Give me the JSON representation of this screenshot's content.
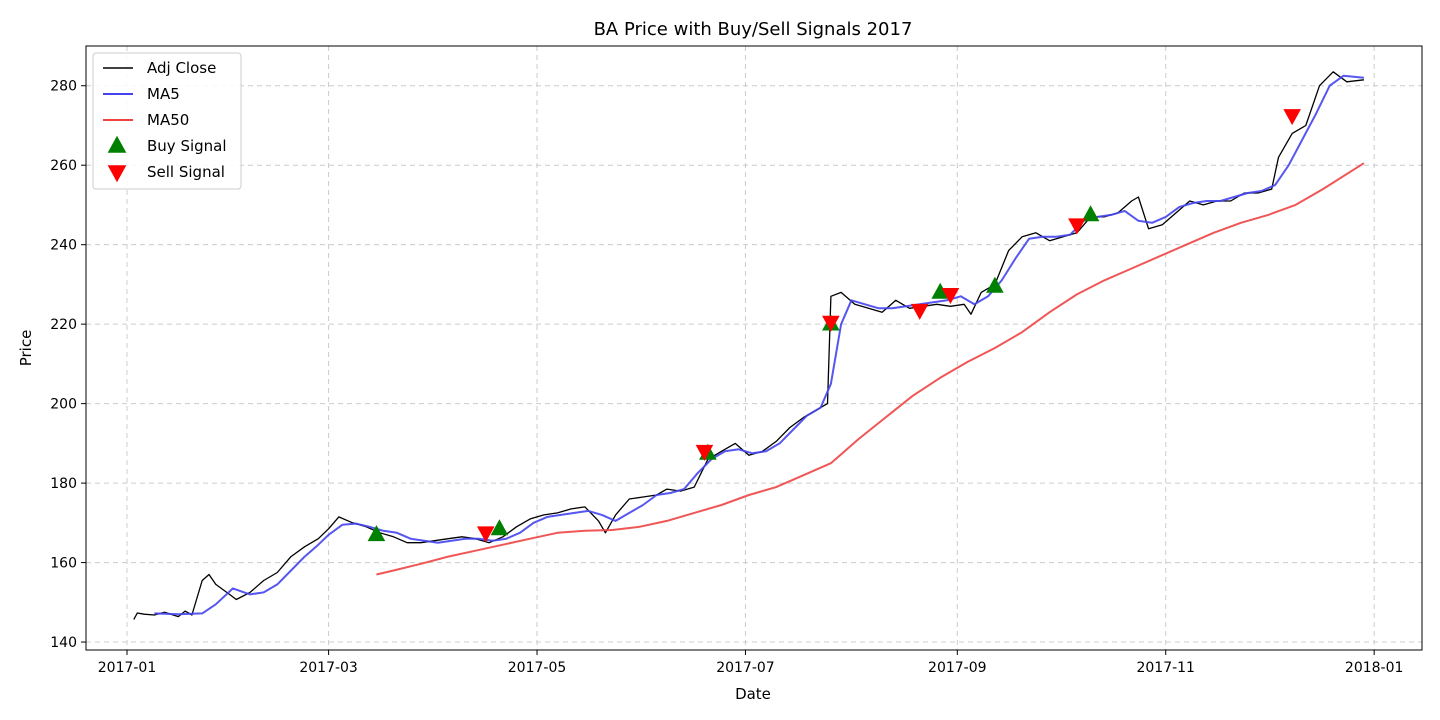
{
  "chart_data": {
    "type": "line",
    "title": "BA Price with Buy/Sell Signals 2017",
    "xlabel": "Date",
    "ylabel": "Price",
    "xlim": [
      "2016-12-20",
      "2018-01-15"
    ],
    "ylim": [
      138,
      290
    ],
    "x_ticks": [
      "2017-01-01",
      "2017-03-01",
      "2017-05-01",
      "2017-07-01",
      "2017-09-01",
      "2017-11-01",
      "2018-01-01"
    ],
    "x_tick_labels": [
      "2017-01",
      "2017-03",
      "2017-05",
      "2017-07",
      "2017-09",
      "2017-11",
      "2018-01"
    ],
    "y_ticks": [
      140,
      160,
      180,
      200,
      220,
      240,
      260,
      280
    ],
    "grid": true,
    "legend_position": "top-left",
    "colors": {
      "adj_close": "#000000",
      "ma5": "#4444ee",
      "ma50": "#ee4444",
      "buy": "#008000",
      "sell": "#ff0000",
      "grid": "#cccccc"
    },
    "series": [
      {
        "name": "Adj Close",
        "key": "adj_close",
        "x": [
          "2017-01-03",
          "2017-01-04",
          "2017-01-06",
          "2017-01-09",
          "2017-01-12",
          "2017-01-16",
          "2017-01-18",
          "2017-01-20",
          "2017-01-23",
          "2017-01-25",
          "2017-01-27",
          "2017-01-31",
          "2017-02-02",
          "2017-02-06",
          "2017-02-10",
          "2017-02-14",
          "2017-02-18",
          "2017-02-22",
          "2017-02-26",
          "2017-03-01",
          "2017-03-04",
          "2017-03-08",
          "2017-03-12",
          "2017-03-16",
          "2017-03-20",
          "2017-03-24",
          "2017-03-28",
          "2017-04-01",
          "2017-04-05",
          "2017-04-09",
          "2017-04-13",
          "2017-04-17",
          "2017-04-21",
          "2017-04-25",
          "2017-04-29",
          "2017-05-03",
          "2017-05-07",
          "2017-05-11",
          "2017-05-15",
          "2017-05-19",
          "2017-05-21",
          "2017-05-24",
          "2017-05-28",
          "2017-06-01",
          "2017-06-05",
          "2017-06-08",
          "2017-06-12",
          "2017-06-16",
          "2017-06-20",
          "2017-06-24",
          "2017-06-28",
          "2017-07-02",
          "2017-07-06",
          "2017-07-10",
          "2017-07-14",
          "2017-07-18",
          "2017-07-22",
          "2017-07-25",
          "2017-07-26",
          "2017-07-29",
          "2017-08-02",
          "2017-08-06",
          "2017-08-10",
          "2017-08-14",
          "2017-08-18",
          "2017-08-22",
          "2017-08-26",
          "2017-08-30",
          "2017-09-03",
          "2017-09-05",
          "2017-09-08",
          "2017-09-12",
          "2017-09-16",
          "2017-09-20",
          "2017-09-24",
          "2017-09-28",
          "2017-10-02",
          "2017-10-06",
          "2017-10-10",
          "2017-10-14",
          "2017-10-18",
          "2017-10-22",
          "2017-10-24",
          "2017-10-27",
          "2017-10-31",
          "2017-11-04",
          "2017-11-08",
          "2017-11-12",
          "2017-11-16",
          "2017-11-20",
          "2017-11-24",
          "2017-11-28",
          "2017-12-02",
          "2017-12-04",
          "2017-12-08",
          "2017-12-12",
          "2017-12-16",
          "2017-12-20",
          "2017-12-24",
          "2017-12-29"
        ],
        "y": [
          145.7,
          147.3,
          147.0,
          146.8,
          147.5,
          146.4,
          147.8,
          146.8,
          155.5,
          157.0,
          154.5,
          152.0,
          150.7,
          152.5,
          155.5,
          157.5,
          161.5,
          164.0,
          166.0,
          168.5,
          171.5,
          170.0,
          169.0,
          167.5,
          166.5,
          165.0,
          165.0,
          165.5,
          166.0,
          166.5,
          166.0,
          165.0,
          166.5,
          169.0,
          171.0,
          172.0,
          172.5,
          173.5,
          174.0,
          170.5,
          167.5,
          172.0,
          176.0,
          176.5,
          177.0,
          178.5,
          178.0,
          179.0,
          186.0,
          188.0,
          190.0,
          187.0,
          188.0,
          190.5,
          194.0,
          196.5,
          198.5,
          200.0,
          227.0,
          228.0,
          225.0,
          224.0,
          223.0,
          226.0,
          224.0,
          224.5,
          225.0,
          224.5,
          225.0,
          222.5,
          228.0,
          230.0,
          238.5,
          242.0,
          243.0,
          241.0,
          242.0,
          243.0,
          247.0,
          247.0,
          248.0,
          251.0,
          252.0,
          244.0,
          245.0,
          248.0,
          251.0,
          250.0,
          251.0,
          251.0,
          253.0,
          253.0,
          254.0,
          262.0,
          268.0,
          270.0,
          280.0,
          283.5,
          281.0,
          281.5
        ]
      },
      {
        "name": "MA5",
        "key": "ma5",
        "x": [
          "2017-01-09",
          "2017-01-16",
          "2017-01-23",
          "2017-01-27",
          "2017-02-01",
          "2017-02-06",
          "2017-02-10",
          "2017-02-14",
          "2017-02-18",
          "2017-02-22",
          "2017-02-26",
          "2017-03-01",
          "2017-03-05",
          "2017-03-09",
          "2017-03-13",
          "2017-03-17",
          "2017-03-21",
          "2017-03-25",
          "2017-03-29",
          "2017-04-02",
          "2017-04-06",
          "2017-04-10",
          "2017-04-14",
          "2017-04-18",
          "2017-04-22",
          "2017-04-26",
          "2017-04-30",
          "2017-05-04",
          "2017-05-08",
          "2017-05-12",
          "2017-05-16",
          "2017-05-20",
          "2017-05-24",
          "2017-05-28",
          "2017-06-01",
          "2017-06-05",
          "2017-06-09",
          "2017-06-13",
          "2017-06-17",
          "2017-06-21",
          "2017-06-25",
          "2017-06-29",
          "2017-07-03",
          "2017-07-07",
          "2017-07-11",
          "2017-07-15",
          "2017-07-19",
          "2017-07-23",
          "2017-07-26",
          "2017-07-29",
          "2017-08-01",
          "2017-08-05",
          "2017-08-09",
          "2017-08-13",
          "2017-08-17",
          "2017-08-21",
          "2017-08-25",
          "2017-08-29",
          "2017-09-02",
          "2017-09-06",
          "2017-09-10",
          "2017-09-14",
          "2017-09-18",
          "2017-09-22",
          "2017-09-26",
          "2017-09-30",
          "2017-10-04",
          "2017-10-08",
          "2017-10-12",
          "2017-10-16",
          "2017-10-20",
          "2017-10-24",
          "2017-10-28",
          "2017-11-01",
          "2017-11-05",
          "2017-11-09",
          "2017-11-13",
          "2017-11-17",
          "2017-11-21",
          "2017-11-25",
          "2017-11-29",
          "2017-12-03",
          "2017-12-07",
          "2017-12-11",
          "2017-12-15",
          "2017-12-19",
          "2017-12-23",
          "2017-12-29"
        ],
        "y": [
          147.2,
          147.0,
          147.2,
          149.5,
          153.5,
          152.0,
          152.5,
          154.5,
          158.0,
          161.5,
          164.5,
          167.0,
          169.5,
          169.8,
          169.0,
          168.0,
          167.5,
          166.0,
          165.5,
          165.0,
          165.5,
          166.0,
          166.0,
          165.5,
          166.0,
          167.5,
          170.0,
          171.5,
          172.0,
          172.5,
          173.0,
          172.0,
          170.5,
          172.5,
          174.5,
          177.0,
          177.5,
          178.5,
          182.5,
          186.0,
          188.0,
          188.5,
          187.5,
          188.0,
          190.0,
          193.5,
          197.0,
          199.0,
          205.0,
          220.0,
          226.0,
          225.0,
          224.0,
          224.0,
          224.5,
          225.0,
          225.5,
          226.0,
          227.0,
          225.0,
          227.0,
          231.0,
          236.5,
          241.5,
          242.0,
          242.0,
          242.5,
          246.0,
          247.0,
          247.5,
          248.5,
          246.0,
          245.5,
          247.0,
          249.5,
          250.5,
          251.0,
          251.0,
          252.0,
          253.0,
          253.5,
          255.0,
          260.0,
          266.5,
          273.0,
          280.0,
          282.5,
          282.0
        ]
      },
      {
        "name": "MA50",
        "key": "ma50",
        "x": [
          "2017-03-15",
          "2017-03-20",
          "2017-03-28",
          "2017-04-05",
          "2017-04-13",
          "2017-04-21",
          "2017-04-29",
          "2017-05-07",
          "2017-05-15",
          "2017-05-23",
          "2017-05-31",
          "2017-06-08",
          "2017-06-16",
          "2017-06-24",
          "2017-07-02",
          "2017-07-10",
          "2017-07-18",
          "2017-07-26",
          "2017-08-03",
          "2017-08-11",
          "2017-08-19",
          "2017-08-27",
          "2017-09-04",
          "2017-09-12",
          "2017-09-20",
          "2017-09-28",
          "2017-10-06",
          "2017-10-14",
          "2017-10-22",
          "2017-10-30",
          "2017-11-07",
          "2017-11-15",
          "2017-11-23",
          "2017-12-01",
          "2017-12-09",
          "2017-12-17",
          "2017-12-29"
        ],
        "y": [
          157.0,
          158.0,
          159.7,
          161.5,
          163.0,
          164.5,
          166.0,
          167.5,
          168.0,
          168.2,
          169.0,
          170.5,
          172.5,
          174.5,
          177.0,
          179.0,
          182.0,
          185.0,
          191.0,
          196.5,
          202.0,
          206.5,
          210.5,
          214.0,
          218.0,
          223.0,
          227.5,
          231.0,
          234.0,
          237.0,
          240.0,
          243.0,
          245.5,
          247.5,
          250.0,
          254.0,
          260.5
        ]
      }
    ],
    "markers": [
      {
        "name": "Buy Signal",
        "key": "buy",
        "shape": "triangle-up",
        "x": [
          "2017-03-15",
          "2017-04-20",
          "2017-06-20",
          "2017-07-26",
          "2017-08-27",
          "2017-09-12",
          "2017-10-10"
        ],
        "y": [
          167.0,
          168.5,
          187.5,
          220.0,
          228.0,
          229.5,
          247.5
        ]
      },
      {
        "name": "Sell Signal",
        "key": "sell",
        "shape": "triangle-down",
        "x": [
          "2017-04-16",
          "2017-06-19",
          "2017-07-26",
          "2017-08-21",
          "2017-08-30",
          "2017-10-06",
          "2017-12-08"
        ],
        "y": [
          167.5,
          188.0,
          220.5,
          223.5,
          227.5,
          245.0,
          272.5
        ]
      }
    ]
  }
}
